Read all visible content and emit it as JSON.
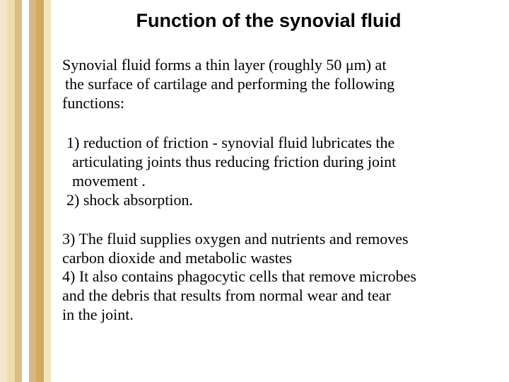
{
  "strip_colors": [
    "#f4e7c9",
    "#eedda8",
    "#d9bd83",
    "#ffffff",
    "#d8b87d",
    "#d0a85f",
    "#f2e3c0"
  ],
  "title": "Function of the synovial fluid",
  "intro": {
    "l1": "Synovial fluid forms a thin layer (roughly 50  μm) at",
    "l2": " the surface of cartilage and performing the following",
    "l3": "functions:"
  },
  "item1": {
    "a": " 1) reduction of friction - synovial fluid lubricates the",
    "b": " articulating joints thus reducing friction during joint",
    "c": " movement ."
  },
  "item2": {
    "a": " 2) shock absorption."
  },
  "item3": {
    "a": "  3) The fluid supplies oxygen and nutrients and removes",
    "b": "carbon dioxide and metabolic wastes"
  },
  "item4": {
    "a": "4) It also contains phagocytic cells that remove microbes",
    "b": " and the debris that results from normal wear and tear",
    "c": " in the joint."
  },
  "text_color": "#000000",
  "background_color": "#ffffff",
  "title_font": "Arial",
  "body_font": "Times New Roman",
  "title_fontsize": 27,
  "body_fontsize": 22
}
